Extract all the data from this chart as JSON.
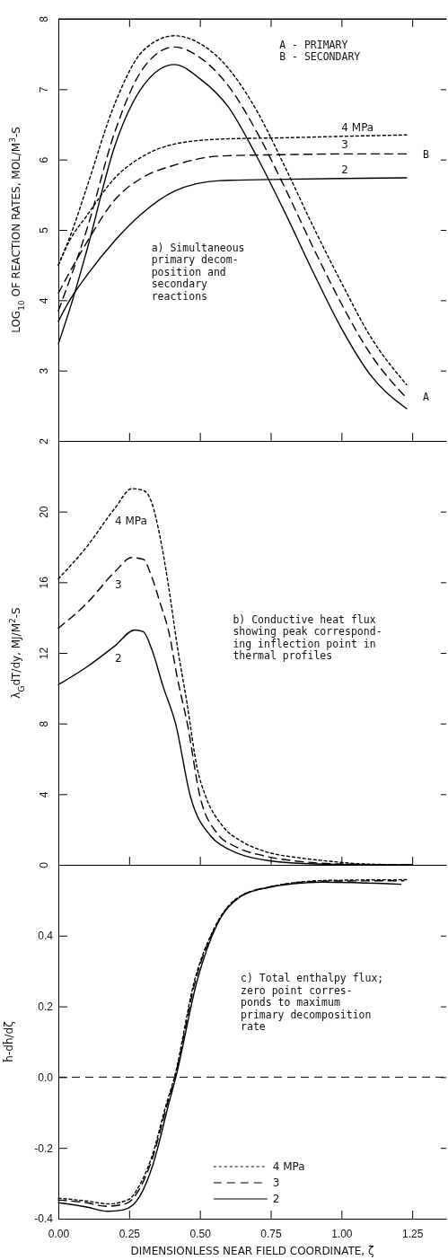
{
  "chart_data": [
    {
      "type": "line",
      "ylabel": "LOG$_{10}$ OF REACTION RATES, MOL/M$^{3}$-S",
      "xlim": [
        0,
        1.37
      ],
      "xticks": [
        {
          "value": 0.25,
          "label": null
        },
        {
          "value": 0.5,
          "label": null
        },
        {
          "value": 0.75,
          "label": null
        },
        {
          "value": 1,
          "label": null
        },
        {
          "value": 1.25,
          "label": null
        }
      ],
      "ylim": [
        2,
        8
      ],
      "yticks": [
        2,
        3,
        4,
        5,
        6,
        7,
        8
      ],
      "tick_labels": "y",
      "legend": false,
      "annotations": [
        "A - PRIMARY\nB - SECONDARY",
        "a) Simultaneous\nprimary decom-\nposition and\nsecondary\nreactions",
        "A",
        "B"
      ],
      "series": [
        {
          "color": "#000000",
          "line_style": "dotted",
          "x": [
            0,
            0.05,
            0.1,
            0.2,
            0.3,
            0.41,
            0.5,
            0.6,
            0.7,
            0.8,
            0.9,
            1.0,
            1.1,
            1.23
          ],
          "values": [
            4.5,
            5.0,
            5.6,
            6.8,
            7.55,
            7.76,
            7.65,
            7.3,
            6.7,
            5.9,
            5.05,
            4.25,
            3.5,
            2.8
          ]
        },
        {
          "color": "#000000",
          "line_style": "dashed",
          "x": [
            0,
            0.05,
            0.1,
            0.2,
            0.3,
            0.41,
            0.5,
            0.6,
            0.7,
            0.8,
            0.9,
            1.0,
            1.1,
            1.23
          ],
          "values": [
            3.85,
            4.4,
            5.0,
            6.4,
            7.3,
            7.6,
            7.45,
            7.05,
            6.4,
            5.6,
            4.75,
            3.95,
            3.25,
            2.61
          ]
        },
        {
          "color": "#000000",
          "line_style": "solid",
          "x": [
            0,
            0.05,
            0.1,
            0.2,
            0.3,
            0.41,
            0.5,
            0.6,
            0.7,
            0.8,
            0.9,
            1.0,
            1.1,
            1.23
          ],
          "values": [
            3.38,
            4.0,
            4.7,
            6.2,
            7.05,
            7.35,
            7.15,
            6.75,
            6.05,
            5.25,
            4.4,
            3.6,
            2.95,
            2.46
          ]
        },
        {
          "name": "4 MPa",
          "color": "#000000",
          "line_style": "dotted",
          "x": [
            0,
            0.04,
            0.1,
            0.2,
            0.3,
            0.41,
            0.57,
            0.8,
            1.0,
            1.23
          ],
          "values": [
            4.5,
            4.85,
            5.2,
            5.74,
            6.05,
            6.22,
            6.29,
            6.31,
            6.33,
            6.35
          ]
        },
        {
          "name": "3",
          "color": "#000000",
          "line_style": "dashed",
          "x": [
            0,
            0.04,
            0.1,
            0.2,
            0.3,
            0.41,
            0.57,
            0.8,
            1.0,
            1.23
          ],
          "values": [
            4.1,
            4.4,
            4.82,
            5.43,
            5.75,
            5.92,
            6.05,
            6.07,
            6.08,
            6.08
          ]
        },
        {
          "name": "2",
          "color": "#000000",
          "line_style": "solid",
          "x": [
            0,
            0.04,
            0.1,
            0.2,
            0.3,
            0.41,
            0.57,
            0.8,
            1.0,
            1.23
          ],
          "values": [
            3.7,
            4.0,
            4.35,
            4.85,
            5.25,
            5.55,
            5.7,
            5.72,
            5.73,
            5.74
          ]
        }
      ]
    },
    {
      "type": "line",
      "ylabel": "λ$_{G}$dT/dy, MJ/M$^{2}$-S",
      "xlim": [
        0,
        1.37
      ],
      "xticks": [
        {
          "value": 0.25,
          "label": null
        },
        {
          "value": 0.5,
          "label": null
        },
        {
          "value": 0.75,
          "label": null
        },
        {
          "value": 1,
          "label": null
        },
        {
          "value": 1.25,
          "label": null
        }
      ],
      "ylim": [
        0,
        24
      ],
      "yticks": [
        0,
        4,
        8,
        12,
        16,
        20
      ],
      "tick_labels": "y",
      "legend": false,
      "annotations": [
        "b) Conductive heat flux\nshowing peak correspond-\ning inflection point in\nthermal profiles"
      ],
      "series": [
        {
          "name": "4 MPa",
          "color": "#000000",
          "line_style": "dotted",
          "x": [
            0,
            0.1,
            0.2,
            0.26,
            0.3,
            0.33,
            0.36,
            0.39,
            0.42,
            0.455,
            0.49,
            0.52,
            0.58,
            0.65,
            0.73,
            0.85,
            0.93,
            1.08,
            1.25
          ],
          "values": [
            16.2,
            18.0,
            20.2,
            21.3,
            21.2,
            20.5,
            18.5,
            15.7,
            12.4,
            9.1,
            5.5,
            3.9,
            2.2,
            1.3,
            0.76,
            0.4,
            0.25,
            0.05,
            0
          ]
        },
        {
          "name": "3",
          "color": "#000000",
          "line_style": "dashed",
          "x": [
            0,
            0.1,
            0.2,
            0.26,
            0.3,
            0.33,
            0.36,
            0.39,
            0.42,
            0.456,
            0.5,
            0.56,
            0.63,
            0.73,
            0.88,
            1.0,
            1.25
          ],
          "values": [
            13.4,
            14.8,
            16.6,
            17.4,
            17.3,
            16.3,
            14.8,
            13.2,
            10.6,
            7.96,
            3.9,
            1.8,
            1.0,
            0.5,
            0.15,
            0.05,
            0
          ]
        },
        {
          "name": "2",
          "color": "#000000",
          "line_style": "solid",
          "x": [
            0,
            0.1,
            0.2,
            0.27,
            0.3,
            0.33,
            0.37,
            0.414,
            0.466,
            0.54,
            0.6,
            0.66,
            0.83,
            1.0,
            1.25
          ],
          "values": [
            10.2,
            11.2,
            12.4,
            13.3,
            13.2,
            12.2,
            10.1,
            8.0,
            3.9,
            1.6,
            0.9,
            0.5,
            0.1,
            0.02,
            0
          ]
        }
      ]
    },
    {
      "type": "line",
      "xlabel": "DIMENSIONLESS NEAR FIELD COORDINATE, ζ",
      "ylabel": "h̃-dh̃/dζ",
      "xlim": [
        0,
        1.37
      ],
      "xticks": [
        {
          "value": 0,
          "label": "0.00"
        },
        {
          "value": 0.25,
          "label": "0.25"
        },
        {
          "value": 0.5,
          "label": "0.50"
        },
        {
          "value": 0.75,
          "label": "0.75"
        },
        {
          "value": 1,
          "label": "1.00"
        },
        {
          "value": 1.25,
          "label": "1.25"
        }
      ],
      "ylim": [
        -0.4,
        0.6
      ],
      "yticks": [
        {
          "value": -0.4,
          "label": "-0.4"
        },
        {
          "value": -0.2,
          "label": "-0.2"
        },
        {
          "value": 0,
          "label": "0.0"
        },
        {
          "value": 0.2,
          "label": "0.2"
        },
        {
          "value": 0.4,
          "label": "0.4"
        }
      ],
      "legend": "bottom",
      "ref_lines": [
        {
          "axis": "y",
          "value": 0,
          "line_style": "dashed",
          "color": "#000000"
        }
      ],
      "annotations": [
        "c) Total enthalpy flux;\nzero point corres-\nponds to maximum\nprimary decomposition\nrate"
      ],
      "series": [
        {
          "name": "4 MPa",
          "color": "#000000",
          "line_style": "dotted",
          "x": [
            0,
            0.1,
            0.18,
            0.25,
            0.28,
            0.33,
            0.38,
            0.41,
            0.48,
            0.55,
            0.63,
            0.75,
            0.95,
            1.23
          ],
          "values": [
            -0.342,
            -0.35,
            -0.358,
            -0.345,
            -0.315,
            -0.225,
            -0.08,
            0.0,
            0.27,
            0.42,
            0.505,
            0.538,
            0.556,
            0.558
          ]
        },
        {
          "name": "3",
          "color": "#000000",
          "line_style": "dashed",
          "x": [
            0,
            0.1,
            0.17,
            0.24,
            0.28,
            0.33,
            0.385,
            0.412,
            0.485,
            0.555,
            0.635,
            0.74,
            0.94,
            1.22
          ],
          "values": [
            -0.347,
            -0.355,
            -0.365,
            -0.357,
            -0.325,
            -0.235,
            -0.075,
            0.0,
            0.275,
            0.425,
            0.507,
            0.537,
            0.554,
            0.555
          ]
        },
        {
          "name": "2",
          "color": "#000000",
          "line_style": "solid",
          "x": [
            0,
            0.1,
            0.175,
            0.23,
            0.285,
            0.335,
            0.39,
            0.415,
            0.49,
            0.56,
            0.64,
            0.73,
            0.93,
            1.21
          ],
          "values": [
            -0.355,
            -0.367,
            -0.379,
            -0.375,
            -0.34,
            -0.245,
            -0.075,
            0.0,
            0.272,
            0.43,
            0.508,
            0.534,
            0.551,
            0.545
          ]
        }
      ]
    }
  ]
}
